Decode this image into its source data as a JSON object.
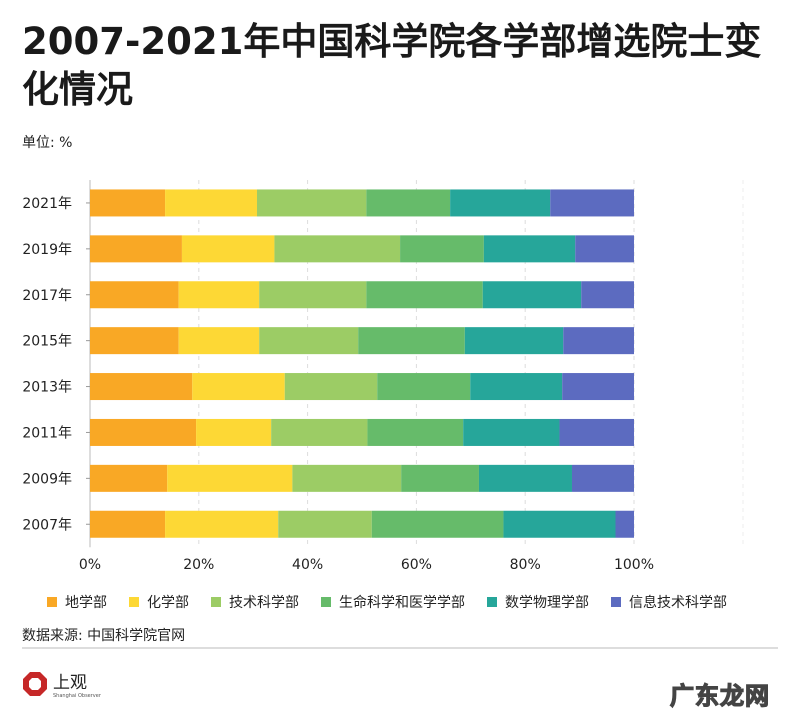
{
  "title": "2007-2021年中国科学院各学部增选院士变化情况",
  "unit": "单位: %",
  "source": "数据来源: 中国科学院官网",
  "logo": {
    "name": "上观",
    "subtitle": "Shanghai Observer"
  },
  "watermark": "广东龙网",
  "chart_data": {
    "type": "bar",
    "orientation": "horizontal",
    "stacked": true,
    "title": "2007-2021年中国科学院各学部增选院士变化情况",
    "ylabel": "单位: %",
    "categories": [
      "2021年",
      "2019年",
      "2017年",
      "2015年",
      "2013年",
      "2011年",
      "2009年",
      "2007年"
    ],
    "xlim": [
      0,
      100
    ],
    "xticks": [
      "0%",
      "20%",
      "40%",
      "60%",
      "80%",
      "100%"
    ],
    "grid": true,
    "legend_position": "bottom",
    "series": [
      {
        "name": "地学部",
        "color": "#f9a825",
        "values": [
          13.8,
          16.9,
          16.3,
          16.3,
          18.8,
          19.5,
          14.2,
          13.8
        ]
      },
      {
        "name": "化学部",
        "color": "#fdd835",
        "values": [
          16.9,
          17.0,
          14.8,
          14.8,
          17.0,
          13.8,
          23.0,
          20.8
        ]
      },
      {
        "name": "技术科学部",
        "color": "#9ccc65",
        "values": [
          20.1,
          23.1,
          19.7,
          18.2,
          17.0,
          17.7,
          20.0,
          17.2
        ]
      },
      {
        "name": "生命科学和医学学部",
        "color": "#66bb6a",
        "values": [
          15.4,
          15.4,
          21.4,
          19.6,
          17.1,
          17.6,
          14.3,
          24.2
        ]
      },
      {
        "name": "数学物理学部",
        "color": "#26a69a",
        "values": [
          18.4,
          16.8,
          18.1,
          18.1,
          16.9,
          17.7,
          17.1,
          20.6
        ]
      },
      {
        "name": "信息技术科学部",
        "color": "#5c6bc0",
        "values": [
          15.4,
          10.8,
          9.7,
          13.0,
          13.2,
          13.7,
          11.4,
          3.4
        ]
      }
    ]
  }
}
